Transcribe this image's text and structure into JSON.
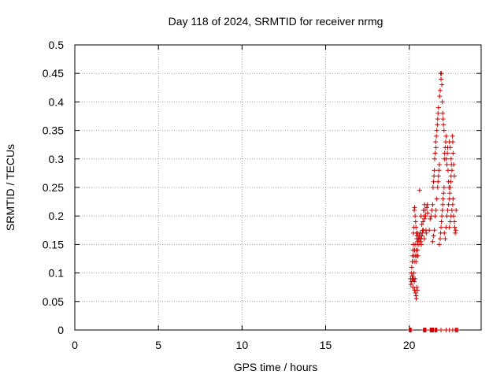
{
  "chart_data": {
    "type": "scatter",
    "title": "Day 118 of 2024, SRMTID for receiver nrmg",
    "xlabel": "GPS time / hours",
    "ylabel": "SRMTID / TECUs",
    "xlim": [
      0,
      24.3
    ],
    "ylim": [
      0,
      0.5
    ],
    "grid": true,
    "x_ticks": [
      0,
      5,
      10,
      15,
      20
    ],
    "x_tick_labels": [
      "0",
      "5",
      "10",
      "15",
      "20"
    ],
    "y_ticks": [
      0,
      0.05,
      0.1,
      0.15,
      0.2,
      0.25,
      0.3,
      0.35,
      0.4,
      0.45,
      0.5
    ],
    "y_tick_labels": [
      "0",
      "0.05",
      "0.1",
      "0.15",
      "0.2",
      "0.25",
      "0.3",
      "0.35",
      "0.4",
      "0.45",
      "0.5"
    ],
    "marker": "+",
    "color": "#cc0000",
    "series": [
      {
        "name": "SRMTID",
        "points": [
          [
            20.08,
            0.09
          ],
          [
            20.1,
            0.08
          ],
          [
            20.12,
            0.1
          ],
          [
            20.15,
            0.085
          ],
          [
            20.18,
            0.095
          ],
          [
            20.2,
            0.09
          ],
          [
            20.22,
            0.075
          ],
          [
            20.25,
            0.09
          ],
          [
            20.28,
            0.1
          ],
          [
            20.3,
            0.085
          ],
          [
            20.32,
            0.07
          ],
          [
            20.35,
            0.09
          ],
          [
            20.38,
            0.065
          ],
          [
            20.4,
            0.06
          ],
          [
            20.42,
            0.055
          ],
          [
            20.45,
            0.075
          ],
          [
            20.48,
            0.07
          ],
          [
            20.15,
            0.11
          ],
          [
            20.18,
            0.12
          ],
          [
            20.2,
            0.13
          ],
          [
            20.22,
            0.14
          ],
          [
            20.25,
            0.15
          ],
          [
            20.28,
            0.13
          ],
          [
            20.3,
            0.12
          ],
          [
            20.32,
            0.14
          ],
          [
            20.35,
            0.15
          ],
          [
            20.38,
            0.13
          ],
          [
            20.4,
            0.12
          ],
          [
            20.42,
            0.14
          ],
          [
            20.45,
            0.13
          ],
          [
            20.48,
            0.15
          ],
          [
            20.5,
            0.14
          ],
          [
            20.52,
            0.13
          ],
          [
            20.25,
            0.17
          ],
          [
            20.28,
            0.18
          ],
          [
            20.3,
            0.21
          ],
          [
            20.32,
            0.215
          ],
          [
            20.35,
            0.2
          ],
          [
            20.38,
            0.19
          ],
          [
            20.4,
            0.18
          ],
          [
            20.42,
            0.17
          ],
          [
            20.45,
            0.16
          ],
          [
            20.48,
            0.165
          ],
          [
            20.5,
            0.155
          ],
          [
            20.52,
            0.17
          ],
          [
            20.55,
            0.16
          ],
          [
            20.58,
            0.15
          ],
          [
            20.6,
            0.165
          ],
          [
            20.62,
            0.16
          ],
          [
            20.65,
            0.17
          ],
          [
            20.68,
            0.155
          ],
          [
            20.7,
            0.16
          ],
          [
            20.72,
            0.15
          ],
          [
            20.75,
            0.165
          ],
          [
            20.78,
            0.17
          ],
          [
            20.8,
            0.175
          ],
          [
            20.82,
            0.19
          ],
          [
            20.85,
            0.21
          ],
          [
            20.88,
            0.2
          ],
          [
            20.9,
            0.195
          ],
          [
            20.92,
            0.22
          ],
          [
            20.95,
            0.21
          ],
          [
            20.98,
            0.2
          ],
          [
            21.0,
            0.175
          ],
          [
            21.02,
            0.17
          ],
          [
            20.62,
            0.245
          ],
          [
            20.7,
            0.2
          ],
          [
            20.75,
            0.185
          ],
          [
            20.85,
            0.175
          ],
          [
            20.9,
            0.16
          ],
          [
            21.05,
            0.215
          ],
          [
            21.08,
            0.22
          ],
          [
            21.1,
            0.205
          ],
          [
            21.2,
            0.175
          ],
          [
            21.25,
            0.195
          ],
          [
            21.3,
            0.2
          ],
          [
            21.35,
            0.21
          ],
          [
            21.4,
            0.22
          ],
          [
            21.42,
            0.25
          ],
          [
            21.45,
            0.26
          ],
          [
            21.48,
            0.27
          ],
          [
            21.5,
            0.28
          ],
          [
            21.52,
            0.3
          ],
          [
            21.55,
            0.31
          ],
          [
            21.58,
            0.33
          ],
          [
            21.6,
            0.32
          ],
          [
            21.62,
            0.34
          ],
          [
            21.65,
            0.35
          ],
          [
            21.68,
            0.36
          ],
          [
            21.7,
            0.37
          ],
          [
            21.72,
            0.38
          ],
          [
            21.75,
            0.39
          ],
          [
            21.4,
            0.155
          ],
          [
            21.45,
            0.165
          ],
          [
            21.5,
            0.175
          ],
          [
            21.55,
            0.2
          ],
          [
            21.6,
            0.21
          ],
          [
            21.65,
            0.23
          ],
          [
            21.7,
            0.25
          ],
          [
            21.72,
            0.26
          ],
          [
            21.75,
            0.27
          ],
          [
            21.78,
            0.28
          ],
          [
            21.8,
            0.29
          ],
          [
            21.82,
            0.41
          ],
          [
            21.85,
            0.42
          ],
          [
            21.88,
            0.45
          ],
          [
            21.9,
            0.44
          ],
          [
            21.92,
            0.45
          ],
          [
            21.95,
            0.43
          ],
          [
            21.98,
            0.4
          ],
          [
            22.0,
            0.38
          ],
          [
            22.02,
            0.37
          ],
          [
            22.05,
            0.36
          ],
          [
            22.08,
            0.35
          ],
          [
            21.8,
            0.15
          ],
          [
            21.85,
            0.16
          ],
          [
            21.88,
            0.17
          ],
          [
            21.9,
            0.18
          ],
          [
            21.92,
            0.19
          ],
          [
            21.95,
            0.2
          ],
          [
            21.98,
            0.21
          ],
          [
            22.0,
            0.22
          ],
          [
            22.02,
            0.23
          ],
          [
            22.05,
            0.24
          ],
          [
            22.08,
            0.25
          ],
          [
            22.1,
            0.3
          ],
          [
            22.12,
            0.31
          ],
          [
            22.15,
            0.32
          ],
          [
            22.18,
            0.33
          ],
          [
            22.2,
            0.34
          ],
          [
            22.22,
            0.3
          ],
          [
            22.25,
            0.29
          ],
          [
            22.28,
            0.31
          ],
          [
            22.3,
            0.32
          ],
          [
            22.32,
            0.28
          ],
          [
            22.35,
            0.26
          ],
          [
            22.38,
            0.25
          ],
          [
            22.1,
            0.17
          ],
          [
            22.15,
            0.16
          ],
          [
            22.2,
            0.18
          ],
          [
            22.25,
            0.2
          ],
          [
            22.3,
            0.21
          ],
          [
            22.35,
            0.22
          ],
          [
            22.4,
            0.23
          ],
          [
            22.42,
            0.24
          ],
          [
            22.45,
            0.25
          ],
          [
            22.48,
            0.26
          ],
          [
            22.5,
            0.27
          ],
          [
            22.4,
            0.33
          ],
          [
            22.45,
            0.32
          ],
          [
            22.5,
            0.3
          ],
          [
            22.52,
            0.29
          ],
          [
            22.55,
            0.28
          ],
          [
            22.58,
            0.34
          ],
          [
            22.6,
            0.33
          ],
          [
            22.62,
            0.31
          ],
          [
            22.65,
            0.29
          ],
          [
            22.7,
            0.27
          ],
          [
            22.4,
            0.18
          ],
          [
            22.45,
            0.19
          ],
          [
            22.5,
            0.2
          ],
          [
            22.55,
            0.21
          ],
          [
            22.6,
            0.22
          ],
          [
            22.62,
            0.23
          ],
          [
            22.65,
            0.2
          ],
          [
            22.7,
            0.19
          ],
          [
            22.72,
            0.18
          ],
          [
            22.75,
            0.17
          ],
          [
            22.78,
            0.175
          ],
          [
            22.8,
            0.21
          ],
          [
            20.0,
            0.0
          ],
          [
            20.03,
            0.0
          ],
          [
            20.06,
            0.0
          ],
          [
            20.09,
            0.0
          ],
          [
            20.12,
            0.0
          ],
          [
            20.85,
            0.0
          ],
          [
            20.88,
            0.0
          ],
          [
            20.91,
            0.0
          ],
          [
            20.94,
            0.0
          ],
          [
            20.97,
            0.0
          ],
          [
            21.0,
            0.0
          ],
          [
            21.25,
            0.0
          ],
          [
            21.28,
            0.0
          ],
          [
            21.31,
            0.0
          ],
          [
            21.34,
            0.0
          ],
          [
            21.37,
            0.0
          ],
          [
            21.4,
            0.0
          ],
          [
            21.43,
            0.0
          ],
          [
            21.46,
            0.0
          ],
          [
            21.55,
            0.0
          ],
          [
            21.58,
            0.0
          ],
          [
            21.62,
            0.0
          ],
          [
            21.65,
            0.0
          ],
          [
            21.9,
            0.0
          ],
          [
            22.2,
            0.0
          ],
          [
            22.4,
            0.0
          ],
          [
            22.6,
            0.0
          ],
          [
            22.75,
            0.0
          ],
          [
            22.8,
            0.0
          ],
          [
            22.85,
            0.0
          ],
          [
            22.9,
            0.0
          ]
        ]
      }
    ]
  }
}
